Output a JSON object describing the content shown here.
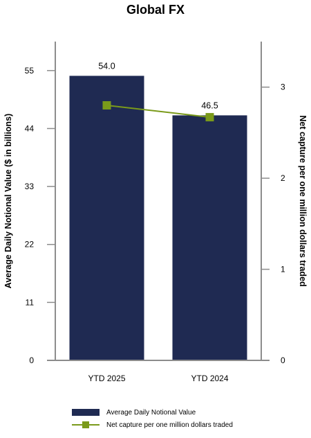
{
  "chart_data": {
    "type": "bar",
    "title": "Global FX",
    "categories": [
      "YTD 2025",
      "YTD 2024"
    ],
    "series": [
      {
        "name": "Average Daily Notional Value",
        "type": "bar",
        "axis": "left",
        "values": [
          54.0,
          46.5
        ],
        "data_labels": [
          "54.0",
          "46.5"
        ],
        "color": "#1f2a52"
      },
      {
        "name": "Net capture per one million dollars traded",
        "type": "line",
        "axis": "right",
        "values": [
          2.8,
          2.67
        ],
        "color": "#7a9a1a"
      }
    ],
    "ylabel_left": "Average Daily Notional Value ($ in billions)",
    "ylabel_right": "Net capture per one million dollars traded",
    "ylim_left": [
      0,
      60.5
    ],
    "yticks_left": [
      0,
      11,
      22,
      33,
      44,
      55
    ],
    "ylim_right": [
      0,
      3.5
    ],
    "yticks_right": [
      0,
      1,
      2,
      3
    ],
    "grid": false,
    "legend": "bottom"
  }
}
